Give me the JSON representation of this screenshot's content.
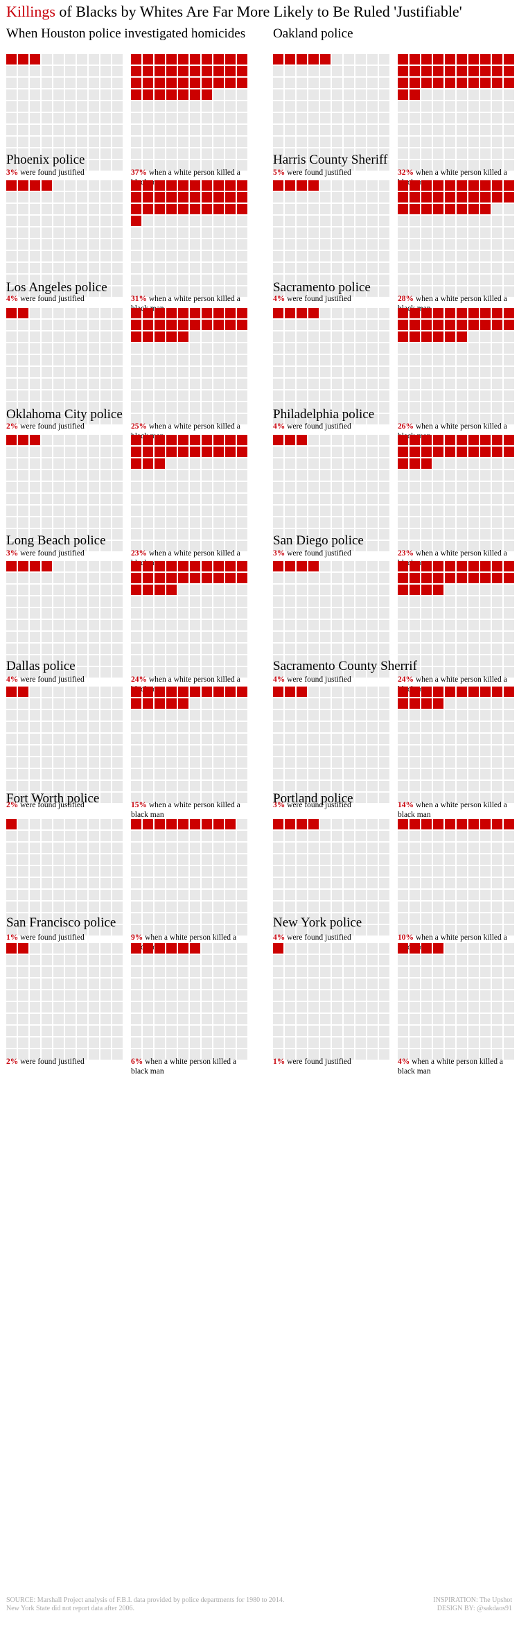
{
  "title": {
    "highlight": "Killings",
    "rest": " of Blacks by Whites Are Far More Likely to Be Ruled 'Justifiable'"
  },
  "colors": {
    "filled": "#cc0000",
    "empty": "#e8e8e8",
    "accent": "#c8000a"
  },
  "chart_data": {
    "type": "waffle",
    "title": "Killings of Blacks by Whites Are Far More Likely to Be Ruled 'Justifiable'",
    "grid_size": [
      10,
      10
    ],
    "series": [
      {
        "name": "were found justified"
      },
      {
        "name": "when a white person killed a black man"
      }
    ],
    "panels": [
      {
        "title": "When Houston police investigated homicides",
        "overall": 3,
        "white_black": 37,
        "overall_label": "3%",
        "overall_text": "were found justified",
        "wb_label": "37%",
        "wb_text": "when a white person killed a black man"
      },
      {
        "title": "Oakland police",
        "overall": 5,
        "white_black": 32,
        "overall_label": "5%",
        "overall_text": "were found justified",
        "wb_label": "32%",
        "wb_text": "when a white person killed a black man"
      },
      {
        "title": "Phoenix police",
        "overall": 4,
        "white_black": 31,
        "overall_label": "4%",
        "overall_text": "were found justified",
        "wb_label": "31%",
        "wb_text": "when a white person killed a black man"
      },
      {
        "title": "Harris County Sheriff",
        "overall": 4,
        "white_black": 28,
        "overall_label": "4%",
        "overall_text": "were found justified",
        "wb_label": "28%",
        "wb_text": "when a white person killed a black man"
      },
      {
        "title": "Los Angeles police",
        "overall": 2,
        "white_black": 25,
        "overall_label": "2%",
        "overall_text": "were found justified",
        "wb_label": "25%",
        "wb_text": "when a white person killed a black man"
      },
      {
        "title": "Sacramento police",
        "overall": 4,
        "white_black": 26,
        "overall_label": "4%",
        "overall_text": "were found justified",
        "wb_label": "26%",
        "wb_text": "when a white person killed a black man"
      },
      {
        "title": "Oklahoma City police",
        "overall": 3,
        "white_black": 23,
        "overall_label": "3%",
        "overall_text": "were found justified",
        "wb_label": "23%",
        "wb_text": "when a white person killed a black man"
      },
      {
        "title": "Philadelphia police",
        "overall": 3,
        "white_black": 23,
        "overall_label": "3%",
        "overall_text": "were found justified",
        "wb_label": "23%",
        "wb_text": "when a white person killed a black man"
      },
      {
        "title": "Long Beach police",
        "overall": 4,
        "white_black": 24,
        "overall_label": "4%",
        "overall_text": "were found justified",
        "wb_label": "24%",
        "wb_text": "when a white person killed a black man"
      },
      {
        "title": "San Diego police",
        "overall": 4,
        "white_black": 24,
        "overall_label": "4%",
        "overall_text": "were found justified",
        "wb_label": "24%",
        "wb_text": "when a white person killed a black man"
      },
      {
        "title": "Dallas police",
        "overall": 2,
        "white_black": 15,
        "overall_label": "2%",
        "overall_text": "were found justified",
        "wb_label": "15%",
        "wb_text": "when a white person killed a black man"
      },
      {
        "title": "Sacramento County Sherrif",
        "overall": 3,
        "white_black": 14,
        "overall_label": "3%",
        "overall_text": "were found justified",
        "wb_label": "14%",
        "wb_text": "when a white person killed a black man"
      },
      {
        "title": "Fort Worth police",
        "overall": 1,
        "white_black": 9,
        "overall_label": "1%",
        "overall_text": "were found justified",
        "wb_label": "9%",
        "wb_text": "when a white person killed a black man"
      },
      {
        "title": "Portland police",
        "overall": 4,
        "white_black": 10,
        "overall_label": "4%",
        "overall_text": "were found justified",
        "wb_label": "10%",
        "wb_text": "when a white person killed a black man"
      },
      {
        "title": "San Francisco police",
        "overall": 2,
        "white_black": 6,
        "overall_label": "2%",
        "overall_text": "were found justified",
        "wb_label": "6%",
        "wb_text": "when a white person killed a black man"
      },
      {
        "title": "New York police",
        "overall": 1,
        "white_black": 4,
        "overall_label": "1%",
        "overall_text": "were found justified",
        "wb_label": "4%",
        "wb_text": "when a white person killed a black man"
      }
    ]
  },
  "footer": {
    "source_line1": "SOURCE: Marshall Project analysis of F.B.I. data provided by police departments for 1980 to 2014.",
    "source_line2": "New York State did not report data after 2006.",
    "inspiration": "INSPIRATION: The Upshot",
    "design": "DESIGN BY: @sakdaos91"
  }
}
